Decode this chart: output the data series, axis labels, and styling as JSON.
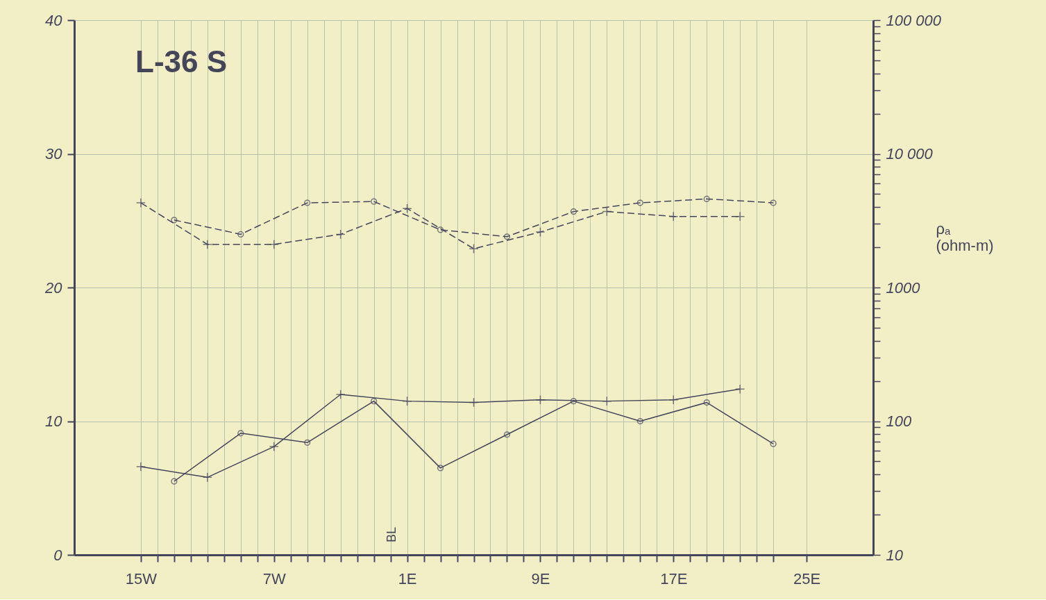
{
  "chart_data": {
    "type": "line",
    "title": "L-36 S",
    "y2label": "ρₐ (ohm-m)",
    "xlim": [
      -19,
      29
    ],
    "xticks": [
      {
        "value": -15,
        "label": "15W"
      },
      {
        "value": -14,
        "label": null
      },
      {
        "value": -13,
        "label": null
      },
      {
        "value": -12,
        "label": null
      },
      {
        "value": -11,
        "label": null
      },
      {
        "value": -10,
        "label": null
      },
      {
        "value": -9,
        "label": null
      },
      {
        "value": -8,
        "label": null
      },
      {
        "value": -7,
        "label": "7W"
      },
      {
        "value": -6,
        "label": null
      },
      {
        "value": -5,
        "label": null
      },
      {
        "value": -4,
        "label": null
      },
      {
        "value": -3,
        "label": null
      },
      {
        "value": -2,
        "label": null
      },
      {
        "value": -1,
        "label": null
      },
      {
        "value": 0,
        "label": null
      },
      {
        "value": 1,
        "label": "1E"
      },
      {
        "value": 2,
        "label": null
      },
      {
        "value": 3,
        "label": null
      },
      {
        "value": 4,
        "label": null
      },
      {
        "value": 5,
        "label": null
      },
      {
        "value": 6,
        "label": null
      },
      {
        "value": 7,
        "label": null
      },
      {
        "value": 8,
        "label": null
      },
      {
        "value": 9,
        "label": "9E"
      },
      {
        "value": 10,
        "label": null
      },
      {
        "value": 11,
        "label": null
      },
      {
        "value": 12,
        "label": null
      },
      {
        "value": 13,
        "label": null
      },
      {
        "value": 14,
        "label": null
      },
      {
        "value": 15,
        "label": null
      },
      {
        "value": 16,
        "label": null
      },
      {
        "value": 17,
        "label": "17E"
      },
      {
        "value": 18,
        "label": null
      },
      {
        "value": 19,
        "label": null
      },
      {
        "value": 20,
        "label": null
      },
      {
        "value": 21,
        "label": null
      },
      {
        "value": 22,
        "label": null
      },
      {
        "value": 23,
        "label": null
      },
      {
        "value": 25,
        "label": "25E"
      }
    ],
    "ylim": [
      0,
      40
    ],
    "yticks": [
      0,
      10,
      20,
      30,
      40
    ],
    "y2lim": [
      10,
      100000
    ],
    "y2ticks": [
      10,
      {
        "value": 20,
        "label": null
      },
      {
        "value": 30,
        "label": null
      },
      {
        "value": 40,
        "label": null
      },
      {
        "value": 50,
        "label": null
      },
      {
        "value": 60,
        "label": null
      },
      {
        "value": 70,
        "label": null
      },
      {
        "value": 80,
        "label": null
      },
      {
        "value": 90,
        "label": null
      },
      100,
      {
        "value": 200,
        "label": null
      },
      {
        "value": 300,
        "label": null
      },
      {
        "value": 400,
        "label": null
      },
      {
        "value": 500,
        "label": null
      },
      {
        "value": 600,
        "label": null
      },
      {
        "value": 700,
        "label": null
      },
      {
        "value": 800,
        "label": null
      },
      {
        "value": 900,
        "label": null
      },
      1000,
      {
        "value": 2000,
        "label": null
      },
      {
        "value": 3000,
        "label": null
      },
      {
        "value": 4000,
        "label": null
      },
      {
        "value": 5000,
        "label": null
      },
      {
        "value": 6000,
        "label": null
      },
      {
        "value": 7000,
        "label": null
      },
      {
        "value": 8000,
        "label": null
      },
      {
        "value": 9000,
        "label": null
      },
      {
        "value": 10000,
        "label": "10 000"
      },
      {
        "value": 20000,
        "label": null
      },
      {
        "value": 30000,
        "label": null
      },
      {
        "value": 40000,
        "label": null
      },
      {
        "value": 50000,
        "label": null
      },
      {
        "value": 60000,
        "label": null
      },
      {
        "value": 70000,
        "label": null
      },
      {
        "value": 80000,
        "label": null
      },
      {
        "value": 90000,
        "label": null
      },
      {
        "value": 100000,
        "label": "100 000"
      }
    ],
    "log": "y2",
    "grid": true,
    "legend": false,
    "annotations": [
      "BL"
    ],
    "series": [
      {
        "color": "#45455a",
        "marker": "circle",
        "line_style": "solid",
        "x": [
          -13,
          -9,
          -5,
          -1,
          3,
          7,
          11,
          15,
          19,
          23
        ],
        "values": [
          5.5,
          9.1,
          8.4,
          11.5,
          6.5,
          9.0,
          11.5,
          10.0,
          11.4,
          8.3
        ]
      },
      {
        "color": "#45455a",
        "marker": "cross",
        "line_style": "solid",
        "x": [
          -15,
          -11,
          -7,
          -3,
          1,
          5,
          9,
          13,
          17,
          21
        ],
        "values": [
          6.6,
          5.8,
          8.1,
          12.0,
          11.5,
          11.4,
          11.6,
          11.5,
          11.6,
          12.4
        ]
      },
      {
        "color": "#45455a",
        "marker": "circle",
        "line_style": "dashed",
        "axis": "y2",
        "x": [
          -13,
          -9,
          -5,
          -1,
          3,
          7,
          11,
          15,
          19,
          23
        ],
        "values": [
          3200,
          2500,
          4300,
          4400,
          2700,
          2400,
          3700,
          4300,
          4600,
          4300
        ]
      },
      {
        "color": "#45455a",
        "marker": "cross",
        "line_style": "dashed",
        "axis": "y2",
        "x": [
          -15,
          -11,
          -7,
          -3,
          1,
          5,
          9,
          13,
          17,
          21
        ],
        "values": [
          4300,
          2100,
          2100,
          2500,
          3900,
          1950,
          2600,
          3700,
          3400,
          3400
        ]
      }
    ]
  }
}
